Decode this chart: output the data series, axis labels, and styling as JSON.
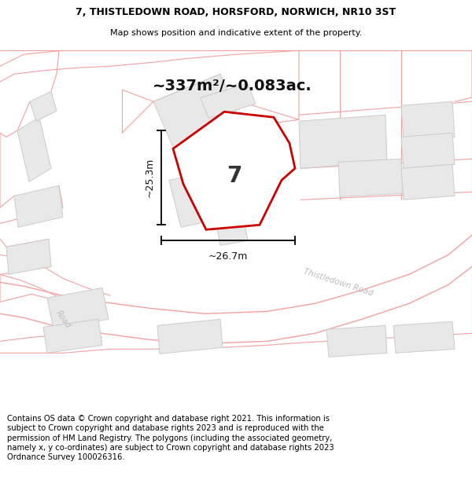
{
  "title_line1": "7, THISTLEDOWN ROAD, HORSFORD, NORWICH, NR10 3ST",
  "title_line2": "Map shows position and indicative extent of the property.",
  "area_label": "~337m²/~0.083ac.",
  "plot_number": "7",
  "dim_vertical": "~25.3m",
  "dim_horizontal": "~26.7m",
  "road_label1": "Thistledown Road",
  "road_label2": "Thistledown Road",
  "road_label3": "Road",
  "footer": "Contains OS data © Crown copyright and database right 2021. This information is subject to Crown copyright and database rights 2023 and is reproduced with the permission of HM Land Registry. The polygons (including the associated geometry, namely x, y co-ordinates) are subject to Crown copyright and database rights 2023 Ordnance Survey 100026316.",
  "bg_color": "#ffffff",
  "plot_fill": "#ffffff",
  "plot_edge": "#cc0000",
  "bldg_fill": "#e8e8e8",
  "bldg_edge": "#cccccc",
  "boundary_color": "#f5a0a0",
  "dim_color": "#111111",
  "road_text_color": "#bbbbbb",
  "title_fontsize": 9,
  "footer_fontsize": 7.2
}
